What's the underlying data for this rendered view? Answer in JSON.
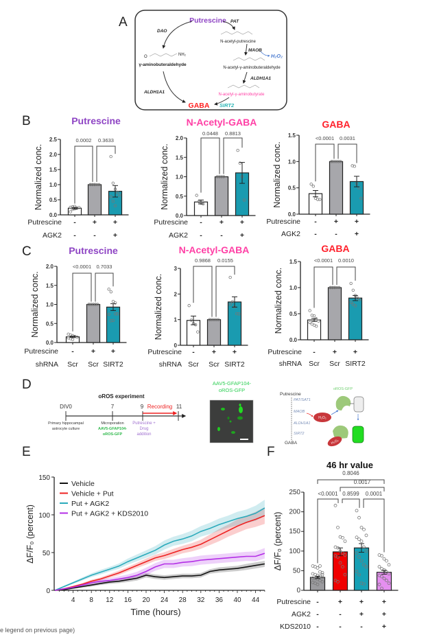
{
  "panel_labels": {
    "a": "A",
    "b": "B",
    "c": "C",
    "d": "D",
    "e": "E",
    "f": "F"
  },
  "pathway": {
    "putrescine": "Putrescine",
    "pat": "PAT",
    "dao": "DAO",
    "n_acetyl_putrescine": "N-acetyl-putrescine",
    "maob": "MAOB",
    "h2o2": "H₂O₂",
    "gamma_aminobuteraldehyde": "γ-aminobuteraldehyde",
    "n_acetyl_aminobuteraldehyde": "N-acetyl-γ-aminobuteraldehyde",
    "aldh1a1_right": "ALDH1A1",
    "aldh1a1_left": "ALDH1A1",
    "n_acetyl_aminobutyrate": "N-acetyl-γ-aminobutyrate",
    "gaba": "GABA",
    "sirt2": "SIRT2",
    "nh2": "NH₂",
    "o": "O",
    "colors": {
      "putrescine": "#8e44c4",
      "gaba": "#ff2020",
      "n_acetyl": "#ff3fa5",
      "sirt2": "#2bb5b5",
      "h2o2": "#4a7bd0"
    }
  },
  "panel_d": {
    "title": "oROS experiment",
    "timepoints": [
      "DIV0",
      "7",
      "9",
      "11"
    ],
    "recording": "Recording",
    "step1": [
      "Primary hippocampal",
      "astrocyte culture"
    ],
    "step2_label": "Microporation",
    "step2_construct": [
      "AAV5-GFAP104-",
      "oROS-GFP"
    ],
    "step3": [
      "Putrescine +",
      "Drug",
      "addition"
    ],
    "image_title": [
      "AAV5-GFAP104-",
      "oROS-GFP"
    ],
    "scheme": {
      "putrescine": "Putrescine",
      "enzymes": [
        "PAT/SAT1",
        "MAOB",
        "ALDH1A1",
        "SIRT2"
      ],
      "gaba": "GABA",
      "h2o2": "H₂O₂",
      "sensor": "oROS-GFP"
    }
  },
  "chart_data": [
    {
      "panel": "B",
      "type": "bar",
      "title": "Putrescine",
      "title_color": "#8e44c4",
      "ylabel": "Normalized conc.",
      "ylim": [
        0,
        2.5
      ],
      "yticks": [
        "0.0",
        "0.5",
        "1.0",
        "1.5",
        "2.0",
        "2.5"
      ],
      "conditions": [
        {
          "label": "Putrescine",
          "values": [
            "-",
            "+",
            "+"
          ]
        },
        {
          "label": "AGK2",
          "values": [
            "-",
            "-",
            "+"
          ]
        }
      ],
      "bars": [
        {
          "mean": 0.22,
          "sem": 0.03,
          "color": "#ffffff",
          "points": [
            0.1,
            0.18,
            0.2,
            0.22,
            0.24,
            0.25,
            0.27,
            0.28
          ]
        },
        {
          "mean": 1.0,
          "sem": 0,
          "color": "#a7a7ab",
          "points": [
            1,
            1,
            1,
            1,
            1,
            1,
            1,
            1
          ]
        },
        {
          "mean": 0.78,
          "sem": 0.19,
          "color": "#1a9bb0",
          "points": [
            1.93,
            1.05,
            0.85,
            0.75,
            0.65,
            0.6,
            0.45,
            0.3
          ]
        }
      ],
      "comparisons": [
        {
          "from": 0,
          "to": 1,
          "p": "0.0002"
        },
        {
          "from": 1,
          "to": 2,
          "p": "0.3633"
        }
      ]
    },
    {
      "panel": "B",
      "type": "bar",
      "title": "N-Acetyl-GABA",
      "title_color": "#ff3fa5",
      "ylabel": "Normalized conc.",
      "ylim": [
        0,
        2.0
      ],
      "yticks": [
        "0.0",
        "0.5",
        "1.0",
        "1.5",
        "2.0"
      ],
      "conditions": [
        {
          "label": "Putrescine",
          "values": [
            "-",
            "+",
            "+"
          ]
        },
        {
          "label": "AGK2",
          "values": [
            "-",
            "-",
            "+"
          ]
        }
      ],
      "bars": [
        {
          "mean": 0.35,
          "sem": 0.05,
          "color": "#ffffff",
          "points": [
            0.52,
            0.36,
            0.32,
            0.3
          ]
        },
        {
          "mean": 1.0,
          "sem": 0,
          "color": "#a7a7ab",
          "points": [
            1,
            1,
            1,
            1
          ]
        },
        {
          "mean": 1.1,
          "sem": 0.27,
          "color": "#1a9bb0",
          "points": [
            1.68,
            1.35,
            1.0,
            0.4
          ]
        }
      ],
      "comparisons": [
        {
          "from": 0,
          "to": 1,
          "p": "0.0448"
        },
        {
          "from": 1,
          "to": 2,
          "p": "0.8813"
        }
      ]
    },
    {
      "panel": "B",
      "type": "bar",
      "title": "GABA",
      "title_color": "#ff1f2a",
      "ylabel": "Normalized conc.",
      "ylim": [
        0,
        1.5
      ],
      "yticks": [
        "0.0",
        "0.5",
        "1.0",
        "1.5"
      ],
      "conditions": [
        {
          "label": "Putrescine",
          "values": [
            "-",
            "+",
            "+"
          ]
        },
        {
          "label": "AGK2",
          "values": [
            "-",
            "-",
            "+"
          ]
        }
      ],
      "bars": [
        {
          "mean": 0.39,
          "sem": 0.06,
          "color": "#ffffff",
          "points": [
            0.57,
            0.53,
            0.3,
            0.28,
            0.28
          ]
        },
        {
          "mean": 1.0,
          "sem": 0,
          "color": "#a7a7ab",
          "points": [
            1,
            1,
            1,
            1,
            1,
            1
          ]
        },
        {
          "mean": 0.62,
          "sem": 0.1,
          "color": "#1a9bb0",
          "points": [
            0.92,
            0.91,
            0.58,
            0.5,
            0.3
          ]
        }
      ],
      "comparisons": [
        {
          "from": 0,
          "to": 1,
          "p": "<0.0001"
        },
        {
          "from": 1,
          "to": 2,
          "p": "0.0031"
        }
      ]
    },
    {
      "panel": "C",
      "type": "bar",
      "title": "Putrescine",
      "title_color": "#8e44c4",
      "ylabel": "Normalized conc.",
      "ylim": [
        0,
        2.0
      ],
      "yticks": [
        "0.0",
        "0.5",
        "1.0",
        "1.5",
        "2.0"
      ],
      "conditions": [
        {
          "label": "Putrescine",
          "values": [
            "-",
            "+",
            "+"
          ]
        },
        {
          "label": "shRNA",
          "values": [
            "Scr",
            "Scr",
            "SIRT2"
          ]
        }
      ],
      "bars": [
        {
          "mean": 0.15,
          "sem": 0.02,
          "color": "#ffffff",
          "points": [
            0.22,
            0.2,
            0.18,
            0.16,
            0.14,
            0.12,
            0.1,
            0.08
          ]
        },
        {
          "mean": 1.0,
          "sem": 0,
          "color": "#a7a7ab",
          "points": [
            1,
            1,
            1,
            1,
            1,
            1,
            1,
            1,
            1
          ]
        },
        {
          "mean": 0.93,
          "sem": 0.09,
          "color": "#1a9bb0",
          "points": [
            1.4,
            1.33,
            1.08,
            1.04,
            0.75,
            0.74,
            0.57,
            0.58,
            0.75
          ]
        }
      ],
      "comparisons": [
        {
          "from": 0,
          "to": 1,
          "p": "<0.0001"
        },
        {
          "from": 1,
          "to": 2,
          "p": "0.7033"
        }
      ]
    },
    {
      "panel": "C",
      "type": "bar",
      "title": "N-Acetyl-GABA",
      "title_color": "#ff3fa5",
      "ylabel": "Normalized conc.",
      "ylim": [
        0,
        3
      ],
      "yticks": [
        "0",
        "1",
        "2",
        "3"
      ],
      "conditions": [
        {
          "label": "Putrescine",
          "values": [
            "-",
            "+",
            "+"
          ]
        },
        {
          "label": "shRNA",
          "values": [
            "Scr",
            "Scr",
            "SIRT2"
          ]
        }
      ],
      "bars": [
        {
          "mean": 0.97,
          "sem": 0.17,
          "color": "#ffffff",
          "points": [
            1.55,
            0.98,
            0.85,
            0.8,
            0.52
          ]
        },
        {
          "mean": 1.0,
          "sem": 0,
          "color": "#a7a7ab",
          "points": [
            1,
            1,
            1,
            1,
            1,
            1
          ]
        },
        {
          "mean": 1.69,
          "sem": 0.2,
          "color": "#1a9bb0",
          "points": [
            2.65,
            1.7,
            1.5,
            1.23,
            1.22,
            1.6
          ]
        }
      ],
      "comparisons": [
        {
          "from": 0,
          "to": 1,
          "p": "0.9868"
        },
        {
          "from": 1,
          "to": 2,
          "p": "0.0155"
        }
      ]
    },
    {
      "panel": "C",
      "type": "bar",
      "title": "GABA",
      "title_color": "#ff1f2a",
      "ylabel": "Normalized conc.",
      "ylim": [
        0,
        1.5
      ],
      "yticks": [
        "0.0",
        "0.5",
        "1.0",
        "1.5"
      ],
      "conditions": [
        {
          "label": "Putrescine",
          "values": [
            "-",
            "+",
            "+"
          ]
        },
        {
          "label": "shRNA",
          "values": [
            "Scr",
            "Scr",
            "SIRT2"
          ]
        }
      ],
      "bars": [
        {
          "mean": 0.38,
          "sem": 0.03,
          "color": "#ffffff",
          "points": [
            0.56,
            0.47,
            0.46,
            0.4,
            0.36,
            0.33,
            0.3,
            0.28,
            0.26
          ]
        },
        {
          "mean": 1.0,
          "sem": 0,
          "color": "#a7a7ab",
          "points": [
            1,
            1,
            1,
            1,
            1,
            1,
            1,
            1
          ]
        },
        {
          "mean": 0.8,
          "sem": 0.05,
          "color": "#1a9bb0",
          "points": [
            1.08,
            0.95,
            0.85,
            0.8,
            0.77,
            0.72,
            0.68,
            0.65
          ]
        }
      ],
      "comparisons": [
        {
          "from": 0,
          "to": 1,
          "p": "<0.0001"
        },
        {
          "from": 1,
          "to": 2,
          "p": "0.0010"
        }
      ]
    },
    {
      "panel": "E",
      "type": "line",
      "xlabel": "Time (hours)",
      "ylabel": "ΔF/F₀ (percent)",
      "xlim": [
        0,
        46
      ],
      "ylim": [
        0,
        150
      ],
      "xticks": [
        "4",
        "8",
        "12",
        "16",
        "20",
        "24",
        "28",
        "32",
        "36",
        "40",
        "44"
      ],
      "yticks": [
        "0",
        "50",
        "100",
        "150"
      ],
      "legend_position": "top-left",
      "x": [
        0,
        2,
        4,
        6,
        8,
        10,
        12,
        14,
        16,
        18,
        20,
        22,
        24,
        26,
        28,
        30,
        32,
        34,
        36,
        38,
        40,
        42,
        44,
        46
      ],
      "series": [
        {
          "name": "Vehicle",
          "color": "#111111",
          "values": [
            0,
            1,
            3,
            5,
            7,
            9,
            11,
            12,
            14,
            16,
            20,
            18,
            17,
            18,
            19,
            19,
            20,
            25,
            27,
            28,
            29,
            31,
            33,
            35
          ],
          "sem": [
            0,
            0.5,
            1,
            1.5,
            2,
            2,
            2.5,
            2.5,
            3,
            3,
            3,
            3,
            3,
            3,
            3,
            3,
            3,
            3,
            3.5,
            3.5,
            3.5,
            4,
            4,
            4
          ]
        },
        {
          "name": "Vehicle + Put",
          "color": "#ee2222",
          "values": [
            0,
            2,
            5,
            8,
            12,
            15,
            19,
            23,
            28,
            33,
            38,
            43,
            46,
            50,
            54,
            57,
            61,
            67,
            73,
            79,
            85,
            90,
            94,
            99
          ],
          "sem": [
            0,
            1,
            1,
            1.5,
            2,
            2,
            2.5,
            3,
            3,
            3.5,
            4,
            4,
            4.5,
            5,
            5,
            5.5,
            6,
            7,
            8,
            8,
            9,
            9,
            10,
            11
          ]
        },
        {
          "name": "Put + AGK2",
          "color": "#2aaabb",
          "values": [
            0,
            5,
            10,
            15,
            20,
            24,
            28,
            32,
            38,
            43,
            48,
            53,
            60,
            65,
            68,
            72,
            78,
            82,
            87,
            91,
            95,
            98,
            102,
            109
          ],
          "sem": [
            0,
            1,
            1.5,
            2,
            2.5,
            3,
            3,
            3.5,
            4,
            4.5,
            5,
            5.5,
            6,
            6,
            6.5,
            7,
            7,
            7.5,
            8,
            8,
            9,
            9,
            10,
            11
          ]
        },
        {
          "name": "Put + AGK2 + KDS2010",
          "color": "#b32ee6",
          "values": [
            0,
            2,
            4,
            7,
            10,
            12,
            13,
            15,
            17,
            20,
            25,
            31,
            35,
            35,
            37,
            38,
            40,
            41,
            42,
            43,
            44,
            45,
            45,
            49
          ],
          "sem": [
            0,
            1,
            1.5,
            2,
            2.5,
            3,
            3,
            3.5,
            4,
            4.5,
            5,
            5,
            5.5,
            5.5,
            5.5,
            6,
            6,
            6,
            6,
            6,
            6,
            6,
            6.5,
            7
          ]
        }
      ]
    },
    {
      "panel": "F",
      "type": "bar",
      "title": "46 hr value",
      "ylabel": "ΔF/F₀ (percent)",
      "ylim": [
        0,
        250
      ],
      "yticks": [
        "0",
        "50",
        "100",
        "150",
        "200",
        "250"
      ],
      "conditions": [
        {
          "label": "Putrescine",
          "values": [
            "-",
            "+",
            "+",
            "+"
          ]
        },
        {
          "label": "AGK2",
          "values": [
            "-",
            "-",
            "+",
            "+"
          ]
        },
        {
          "label": "KDS2010",
          "values": [
            "-",
            "-",
            "-",
            "+"
          ]
        }
      ],
      "bars": [
        {
          "mean": 33,
          "sem": 3,
          "color": "#9b9b9f",
          "points": [
            62,
            60,
            57,
            47,
            45,
            42,
            40,
            38,
            36,
            33,
            31,
            30,
            28,
            25,
            22,
            20,
            18,
            15,
            62,
            40
          ]
        },
        {
          "mean": 98,
          "sem": 10,
          "color": "#f00000",
          "points": [
            216,
            160,
            136,
            134,
            125,
            110,
            108,
            100,
            95,
            90,
            88,
            85,
            70,
            60,
            40,
            25,
            22
          ]
        },
        {
          "mean": 108,
          "sem": 11,
          "color": "#16a0b5",
          "points": [
            203,
            185,
            160,
            155,
            140,
            135,
            130,
            125,
            110,
            100,
            95,
            85,
            75,
            65,
            60,
            48,
            40,
            18,
            16
          ]
        },
        {
          "mean": 46,
          "sem": 5,
          "color": "#e58ff0",
          "points": [
            90,
            88,
            80,
            75,
            65,
            60,
            55,
            52,
            47,
            42,
            38,
            35,
            30,
            25,
            18,
            15,
            5
          ]
        }
      ],
      "comparisons": [
        {
          "from": 0,
          "to": 1,
          "p": "<0.0001"
        },
        {
          "from": 1,
          "to": 2,
          "p": "0.8599"
        },
        {
          "from": 2,
          "to": 3,
          "p": "0.0001"
        },
        {
          "from": 1,
          "to": 3,
          "p": "0.0017"
        },
        {
          "from": 0,
          "to": 3,
          "p": "0.8046"
        }
      ]
    }
  ],
  "footer": "e legend on previous page)"
}
